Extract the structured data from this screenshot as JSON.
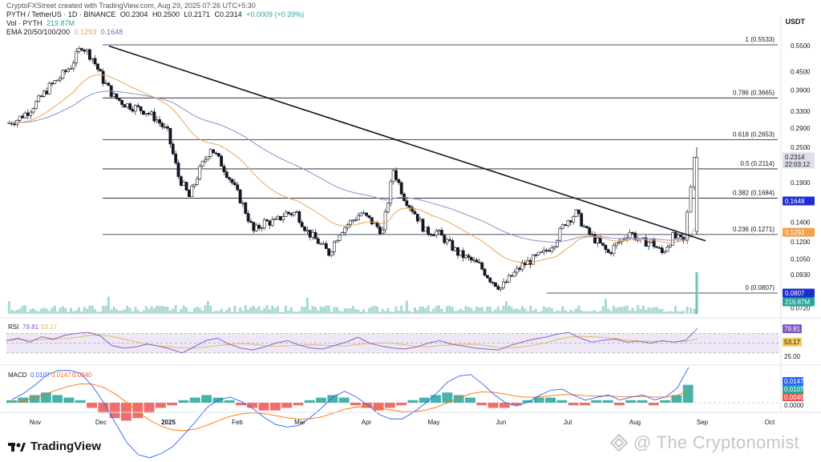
{
  "header": {
    "creator": "CryptoFXStreet created with TradingView.com, Aug 29, 2025 07:26 UTC+5:30",
    "symbol": "PYTH / TetherUS · 1D · BINANCE",
    "open": "O0.2304",
    "high": "H0.2500",
    "low": "L0.2171",
    "close": "C0.2314",
    "change": "+0.0009 (+0.39%)",
    "vol_label": "Vol · PYTH",
    "vol_value": "219.87M",
    "ema_label": "EMA 20/50/100/200",
    "ema_value1": "0.1293",
    "ema_value2": "0.1648",
    "currency": "USDT"
  },
  "colors": {
    "up": "#26a69a",
    "down": "#ef5350",
    "ema_orange": "#e8a65a",
    "ema_blue": "#8f8fc9",
    "trendline": "#131722",
    "rsi_line": "#7e57c2",
    "rsi_ma": "#e6b35a",
    "macd_line": "#2962ff",
    "signal_line": "#ff6d00"
  },
  "chart_data": {
    "type": "candlestick",
    "x_labels": [
      "Nov",
      "Dec",
      "2025",
      "Feb",
      "Mar",
      "Apr",
      "May",
      "Jun",
      "Jul",
      "Aug",
      "Sep",
      "Oct"
    ],
    "y_ticks": [
      "0.5500",
      "0.4500",
      "0.3900",
      "0.3300",
      "0.2900",
      "0.2500",
      "0.1900",
      "0.1400",
      "0.1200",
      "0.1050",
      "0.0930",
      "0.0720"
    ],
    "fib_levels": [
      {
        "label": "1 (0.5533)",
        "value": 0.5533
      },
      {
        "label": "0.786 (0.3665)",
        "value": 0.3665
      },
      {
        "label": "0.618 (0.2653)",
        "value": 0.2653
      },
      {
        "label": "0.5 (0.2114)",
        "value": 0.2114
      },
      {
        "label": "0.382 (0.1684)",
        "value": 0.1684
      },
      {
        "label": "0.236 (0.1271)",
        "value": 0.1271
      },
      {
        "label": "0 (0.0807)",
        "value": 0.0807
      }
    ],
    "price_badges": [
      {
        "text": "0.2314",
        "sub": "22:03:12",
        "kind": "current"
      },
      {
        "text": "0.1648",
        "kind": "ema200"
      },
      {
        "text": "0.1293",
        "kind": "ema50"
      },
      {
        "text": "0.0807",
        "kind": "fib0"
      },
      {
        "text": "219.87M",
        "kind": "volume"
      }
    ],
    "price_path": [
      0.3,
      0.31,
      0.33,
      0.36,
      0.4,
      0.43,
      0.47,
      0.55,
      0.5,
      0.42,
      0.37,
      0.35,
      0.34,
      0.33,
      0.31,
      0.28,
      0.2,
      0.17,
      0.21,
      0.25,
      0.22,
      0.19,
      0.16,
      0.13,
      0.14,
      0.14,
      0.15,
      0.15,
      0.13,
      0.12,
      0.11,
      0.13,
      0.14,
      0.15,
      0.14,
      0.13,
      0.21,
      0.17,
      0.15,
      0.13,
      0.13,
      0.12,
      0.11,
      0.105,
      0.1,
      0.09,
      0.084,
      0.092,
      0.1,
      0.105,
      0.11,
      0.12,
      0.14,
      0.15,
      0.13,
      0.12,
      0.11,
      0.12,
      0.13,
      0.12,
      0.12,
      0.11,
      0.125,
      0.12,
      0.2314
    ],
    "rsi": {
      "label": "RSI",
      "value": "79.81",
      "ma": "53.17",
      "level_label": "25.00",
      "series": [
        55,
        60,
        52,
        63,
        58,
        66,
        70,
        72,
        65,
        45,
        40,
        42,
        48,
        44,
        38,
        30,
        42,
        55,
        60,
        48,
        40,
        36,
        42,
        50,
        55,
        46,
        40,
        38,
        45,
        52,
        62,
        50,
        44,
        40,
        38,
        42,
        50,
        55,
        48,
        44,
        40,
        38,
        36,
        45,
        52,
        58,
        62,
        68,
        72,
        60,
        52,
        56,
        58,
        52,
        54,
        50,
        55,
        52,
        56,
        80
      ]
    },
    "macd": {
      "label": "MACD",
      "macd_value": "0.0107",
      "signal_value": "0.0147",
      "hist_value": "0.0040",
      "badges": [
        "0.0147",
        "0.0107",
        "0.0040",
        "0.0000"
      ],
      "hist": [
        1,
        2,
        3,
        4,
        3,
        2,
        1,
        -2,
        -4,
        -6,
        -7,
        -6,
        -4,
        -2,
        -1,
        1,
        2,
        3,
        2,
        1,
        -1,
        -2,
        -3,
        -3,
        -2,
        -1,
        1,
        2,
        3,
        2,
        -1,
        -2,
        -3,
        -2,
        -1,
        1,
        2,
        3,
        4,
        3,
        2,
        -1,
        -2,
        -2,
        -1,
        1,
        2,
        2,
        1,
        -1,
        -1,
        1,
        1,
        -1,
        1,
        1,
        -1,
        1,
        3,
        7
      ]
    }
  },
  "footer": {
    "tv_logo": "TradingView",
    "watermark": "@ The Cryptonomist"
  }
}
